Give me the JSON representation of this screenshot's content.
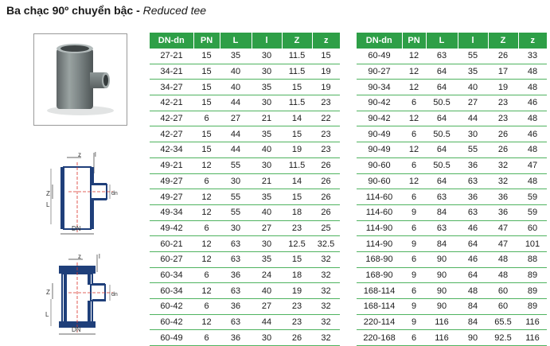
{
  "title": {
    "vn": "Ba chạc 90º chuyển bậc - ",
    "en": "Reduced tee"
  },
  "drawings": {
    "top": {
      "label_z": "z",
      "label_l": "l",
      "label_Z": "Z",
      "label_dn": "dn",
      "label_L": "L",
      "label_DN": "DN"
    },
    "bottom": {
      "label_z": "z",
      "label_l": "l",
      "label_Z": "Z",
      "label_dn": "dn",
      "label_L": "L",
      "label_DN": "DN"
    }
  },
  "colors": {
    "header_green": "#2e9f47",
    "row_line_green": "#4fb35f",
    "pipe_blue": "#1f3f7a",
    "centerline_red": "#d9332a"
  },
  "table_headers": [
    "DN-dn",
    "PN",
    "L",
    "l",
    "Z",
    "z"
  ],
  "left_rows": [
    [
      "27-21",
      "15",
      "35",
      "30",
      "11.5",
      "15"
    ],
    [
      "34-21",
      "15",
      "40",
      "30",
      "11.5",
      "19"
    ],
    [
      "34-27",
      "15",
      "40",
      "35",
      "15",
      "19"
    ],
    [
      "42-21",
      "15",
      "44",
      "30",
      "11.5",
      "23"
    ],
    [
      "42-27",
      "6",
      "27",
      "21",
      "14",
      "22"
    ],
    [
      "42-27",
      "15",
      "44",
      "35",
      "15",
      "23"
    ],
    [
      "42-34",
      "15",
      "44",
      "40",
      "19",
      "23"
    ],
    [
      "49-21",
      "12",
      "55",
      "30",
      "11.5",
      "26"
    ],
    [
      "49-27",
      "6",
      "30",
      "21",
      "14",
      "26"
    ],
    [
      "49-27",
      "12",
      "55",
      "35",
      "15",
      "26"
    ],
    [
      "49-34",
      "12",
      "55",
      "40",
      "18",
      "26"
    ],
    [
      "49-42",
      "6",
      "30",
      "27",
      "23",
      "25"
    ],
    [
      "60-21",
      "12",
      "63",
      "30",
      "12.5",
      "32.5"
    ],
    [
      "60-27",
      "12",
      "63",
      "35",
      "15",
      "32"
    ],
    [
      "60-34",
      "6",
      "36",
      "24",
      "18",
      "32"
    ],
    [
      "60-34",
      "12",
      "63",
      "40",
      "19",
      "32"
    ],
    [
      "60-42",
      "6",
      "36",
      "27",
      "23",
      "32"
    ],
    [
      "60-42",
      "12",
      "63",
      "44",
      "23",
      "32"
    ],
    [
      "60-49",
      "6",
      "36",
      "30",
      "26",
      "32"
    ]
  ],
  "right_rows": [
    [
      "60-49",
      "12",
      "63",
      "55",
      "26",
      "33"
    ],
    [
      "90-27",
      "12",
      "64",
      "35",
      "17",
      "48"
    ],
    [
      "90-34",
      "12",
      "64",
      "40",
      "19",
      "48"
    ],
    [
      "90-42",
      "6",
      "50.5",
      "27",
      "23",
      "46"
    ],
    [
      "90-42",
      "12",
      "64",
      "44",
      "23",
      "48"
    ],
    [
      "90-49",
      "6",
      "50.5",
      "30",
      "26",
      "46"
    ],
    [
      "90-49",
      "12",
      "64",
      "55",
      "26",
      "48"
    ],
    [
      "90-60",
      "6",
      "50.5",
      "36",
      "32",
      "47"
    ],
    [
      "90-60",
      "12",
      "64",
      "63",
      "32",
      "48"
    ],
    [
      "114-60",
      "6",
      "63",
      "36",
      "36",
      "59"
    ],
    [
      "114-60",
      "9",
      "84",
      "63",
      "36",
      "59"
    ],
    [
      "114-90",
      "6",
      "63",
      "46",
      "47",
      "60"
    ],
    [
      "114-90",
      "9",
      "84",
      "64",
      "47",
      "101"
    ],
    [
      "168-90",
      "6",
      "90",
      "46",
      "48",
      "88"
    ],
    [
      "168-90",
      "9",
      "90",
      "64",
      "48",
      "89"
    ],
    [
      "168-114",
      "6",
      "90",
      "48",
      "60",
      "89"
    ],
    [
      "168-114",
      "9",
      "90",
      "84",
      "60",
      "89"
    ],
    [
      "220-114",
      "9",
      "116",
      "84",
      "65.5",
      "116"
    ],
    [
      "220-168",
      "6",
      "116",
      "90",
      "92.5",
      "116"
    ]
  ]
}
